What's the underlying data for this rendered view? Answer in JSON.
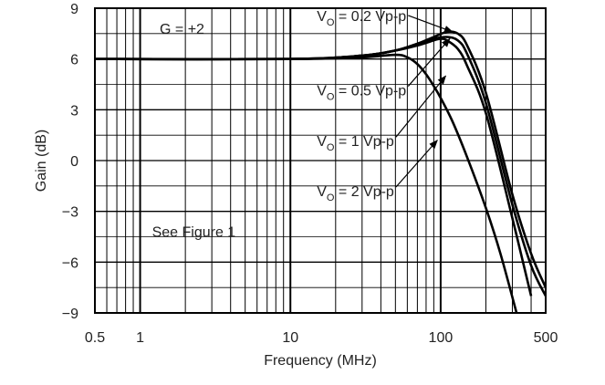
{
  "chart_data": {
    "type": "line",
    "xscale": "log",
    "xlabel": "Frequency (MHz)",
    "ylabel": "Gain (dB)",
    "xlim": [
      0.5,
      500
    ],
    "ylim": [
      -9,
      9
    ],
    "grid": true,
    "x_ticks": [
      {
        "value": 0.5,
        "label": "0.5"
      },
      {
        "value": 1,
        "label": "1"
      },
      {
        "value": 10,
        "label": "10"
      },
      {
        "value": 100,
        "label": "100"
      },
      {
        "value": 500,
        "label": "500"
      }
    ],
    "y_ticks": [
      {
        "value": 9,
        "label": "9"
      },
      {
        "value": 6,
        "label": "6"
      },
      {
        "value": 3,
        "label": "3"
      },
      {
        "value": 0,
        "label": "0"
      },
      {
        "value": -3,
        "label": "−3"
      },
      {
        "value": -6,
        "label": "−6"
      },
      {
        "value": -9,
        "label": "−9"
      }
    ],
    "series": [
      {
        "name": "VO = 0.2 Vp-p",
        "label_main": "V",
        "label_sub": "O",
        "label_rest": " = 0.2 Vp-p",
        "label_pos": {
          "x": 15,
          "y": 8.25
        },
        "arrow_to": {
          "x": 120,
          "y": 7.6
        },
        "x": [
          0.5,
          10,
          30,
          50,
          70,
          90,
          110,
          130,
          150,
          200,
          300,
          400,
          500
        ],
        "y": [
          6,
          6,
          6.2,
          6.5,
          6.9,
          7.3,
          7.6,
          7.5,
          6.8,
          4.0,
          -2.0,
          -5.5,
          -7.5
        ]
      },
      {
        "name": "VO = 0.5 Vp-p",
        "label_main": "V",
        "label_sub": "O",
        "label_rest": " = 0.5 Vp-p",
        "label_pos": {
          "x": 15,
          "y": 3.85
        },
        "arrow_to": {
          "x": 115,
          "y": 7.2
        },
        "x": [
          0.5,
          10,
          30,
          50,
          70,
          90,
          110,
          130,
          150,
          200,
          300,
          400,
          500
        ],
        "y": [
          6,
          6,
          6.2,
          6.5,
          6.9,
          7.2,
          7.3,
          7.1,
          6.3,
          3.4,
          -2.6,
          -6.2,
          -8.0
        ]
      },
      {
        "name": "VO = 1 Vp-p",
        "label_main": "V",
        "label_sub": "O",
        "label_rest": " = 1 Vp-p",
        "label_pos": {
          "x": 15,
          "y": 0.85
        },
        "arrow_to": {
          "x": 108,
          "y": 5.0
        },
        "x": [
          0.5,
          10,
          30,
          50,
          70,
          90,
          100,
          110,
          130,
          150,
          200,
          300,
          400
        ],
        "y": [
          6,
          6,
          6.2,
          6.5,
          6.8,
          7.1,
          7.2,
          7.1,
          6.6,
          5.6,
          2.8,
          -3.4,
          -8.0
        ]
      },
      {
        "name": "VO = 2 Vp-p",
        "label_main": "V",
        "label_sub": "O",
        "label_rest": " = 2 Vp-p",
        "label_pos": {
          "x": 15,
          "y": -2.1
        },
        "arrow_to": {
          "x": 95,
          "y": 1.2
        },
        "x": [
          0.5,
          10,
          30,
          50,
          60,
          70,
          80,
          90,
          100,
          120,
          150,
          200,
          250,
          320
        ],
        "y": [
          6,
          6,
          6.1,
          6.25,
          6.1,
          5.7,
          5.1,
          4.4,
          3.7,
          2.3,
          0.2,
          -2.8,
          -5.5,
          -9.0
        ]
      }
    ],
    "annotations": [
      {
        "text": "G = +2",
        "x": 1.35,
        "y": 7.5
      },
      {
        "text": "See Figure 1",
        "x": 1.2,
        "y": -4.5
      }
    ]
  }
}
